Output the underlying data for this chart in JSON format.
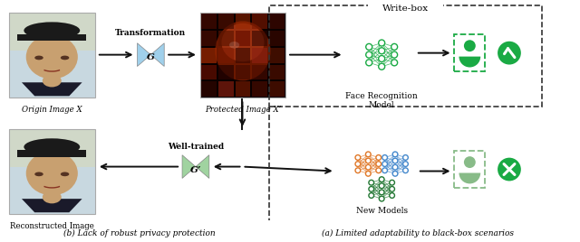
{
  "bg_color": "#ffffff",
  "write_box_label": "Write-box",
  "transform_label1": "Transformation",
  "transform_label2": "G",
  "origin_label": "Origin Image X",
  "protected_label": "Protected Image X’",
  "face_rec_label1": "Face Recognition",
  "face_rec_label2": "Model",
  "reconstructed_label": "Reconstructed Image",
  "well_trained_label1": "Well-trained",
  "well_trained_label2": "G’",
  "new_models_label": "New Models",
  "caption_a": "(a) Limited adaptability to black-box scenarios",
  "caption_b": "(b) Lack of robust privacy protection",
  "green_color": "#1aaa44",
  "light_blue_color": "#90c8e8",
  "light_green_color": "#90cc90",
  "orange_color": "#e07828",
  "blue_color": "#4488cc",
  "dark_green_nn": "#227733"
}
